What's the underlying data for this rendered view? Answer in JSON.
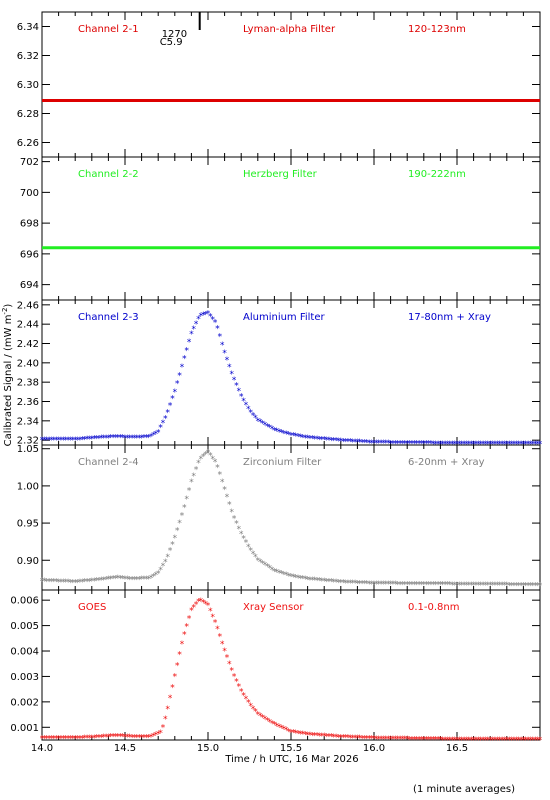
{
  "chart_data": {
    "type": "scatter",
    "xlabel": "Time / h UTC, 16 Mar 2026",
    "ylabel": "Calibrated Signal / (mW m",
    "ylabel_sup": "-2",
    "ylabel_end": ")",
    "footnote": "(1 minute averages)",
    "xlim": [
      14.0,
      17.0
    ],
    "xticks": [
      "14.0",
      "14.5",
      "15.0",
      "15.5",
      "16.0",
      "16.5"
    ],
    "marker": {
      "x": 14.95,
      "label_top": "1270",
      "label_bottom": "C5.9"
    },
    "panels": [
      {
        "channel": "Channel 2-1",
        "filter": "Lyman-alpha Filter",
        "band": "120-123nm",
        "color": "#dd0000",
        "style": "line",
        "ylim": [
          6.25,
          6.35
        ],
        "yticks": [
          "6.26",
          "6.28",
          "6.30",
          "6.32",
          "6.34"
        ],
        "series": [
          {
            "x": [
              14.0,
              15.0,
              16.0,
              17.0
            ],
            "y": [
              6.289,
              6.289,
              6.289,
              6.289
            ]
          }
        ]
      },
      {
        "channel": "Channel 2-2",
        "filter": "Herzberg Filter",
        "band": "190-222nm",
        "color": "#22ee22",
        "style": "line",
        "ylim": [
          693,
          702.3
        ],
        "yticks": [
          "694",
          "696",
          "698",
          "700",
          "702"
        ],
        "series": [
          {
            "x": [
              14.0,
              15.0,
              16.0,
              17.0
            ],
            "y": [
              696.4,
              696.4,
              696.4,
              696.4
            ]
          }
        ]
      },
      {
        "channel": "Channel 2-3",
        "filter": "Aluminium Filter",
        "band": "17-80nm + Xray",
        "color": "#0000cc",
        "style": "marker",
        "ylim": [
          2.315,
          2.465
        ],
        "yticks": [
          "2.32",
          "2.34",
          "2.36",
          "2.38",
          "2.40",
          "2.42",
          "2.44",
          "2.46"
        ],
        "series": [
          {
            "x": [
              14.0,
              14.2,
              14.35,
              14.45,
              14.55,
              14.65,
              14.7,
              14.75,
              14.8,
              14.85,
              14.9,
              14.95,
              15.0,
              15.05,
              15.1,
              15.15,
              15.2,
              15.25,
              15.3,
              15.4,
              15.5,
              15.6,
              15.8,
              16.0,
              16.5,
              17.0
            ],
            "y": [
              2.32,
              2.32,
              2.322,
              2.323,
              2.322,
              2.323,
              2.328,
              2.345,
              2.37,
              2.4,
              2.43,
              2.448,
              2.451,
              2.44,
              2.41,
              2.385,
              2.365,
              2.35,
              2.34,
              2.33,
              2.325,
              2.322,
              2.319,
              2.317,
              2.316,
              2.316
            ]
          }
        ]
      },
      {
        "channel": "Channel 2-4",
        "filter": "Zirconium Filter",
        "band": "6-20nm + Xray",
        "color": "#808080",
        "style": "marker",
        "ylim": [
          0.86,
          1.055
        ],
        "yticks": [
          "0.90",
          "0.95",
          "1.00",
          "1.05"
        ],
        "series": [
          {
            "x": [
              14.0,
              14.2,
              14.35,
              14.45,
              14.55,
              14.65,
              14.7,
              14.75,
              14.8,
              14.85,
              14.9,
              14.95,
              15.0,
              15.05,
              15.1,
              15.15,
              15.2,
              15.25,
              15.3,
              15.4,
              15.5,
              15.6,
              15.8,
              16.0,
              16.5,
              17.0
            ],
            "y": [
              0.872,
              0.87,
              0.873,
              0.876,
              0.874,
              0.875,
              0.882,
              0.9,
              0.93,
              0.965,
              1.005,
              1.035,
              1.045,
              1.03,
              0.995,
              0.96,
              0.935,
              0.915,
              0.9,
              0.885,
              0.878,
              0.874,
              0.87,
              0.868,
              0.867,
              0.866
            ]
          }
        ]
      },
      {
        "channel": "GOES",
        "filter": "Xray Sensor",
        "band": "0.1-0.8nm",
        "color": "#ee1111",
        "style": "marker",
        "ylim": [
          0.0005,
          0.0064
        ],
        "yticks": [
          "0.001",
          "0.002",
          "0.003",
          "0.004",
          "0.005",
          "0.006"
        ],
        "series": [
          {
            "x": [
              14.0,
              14.2,
              14.35,
              14.45,
              14.55,
              14.65,
              14.72,
              14.75,
              14.8,
              14.85,
              14.9,
              14.95,
              15.0,
              15.05,
              15.1,
              15.15,
              15.2,
              15.25,
              15.3,
              15.4,
              15.5,
              15.6,
              15.8,
              16.0,
              16.5,
              17.0
            ],
            "y": [
              0.00055,
              0.00055,
              0.0006,
              0.00065,
              0.0006,
              0.0006,
              0.0008,
              0.0015,
              0.003,
              0.0045,
              0.0056,
              0.006,
              0.0058,
              0.005,
              0.004,
              0.0031,
              0.0024,
              0.0019,
              0.0015,
              0.0011,
              0.0008,
              0.0007,
              0.0006,
              0.00055,
              0.0005,
              0.0005
            ]
          }
        ]
      }
    ]
  }
}
